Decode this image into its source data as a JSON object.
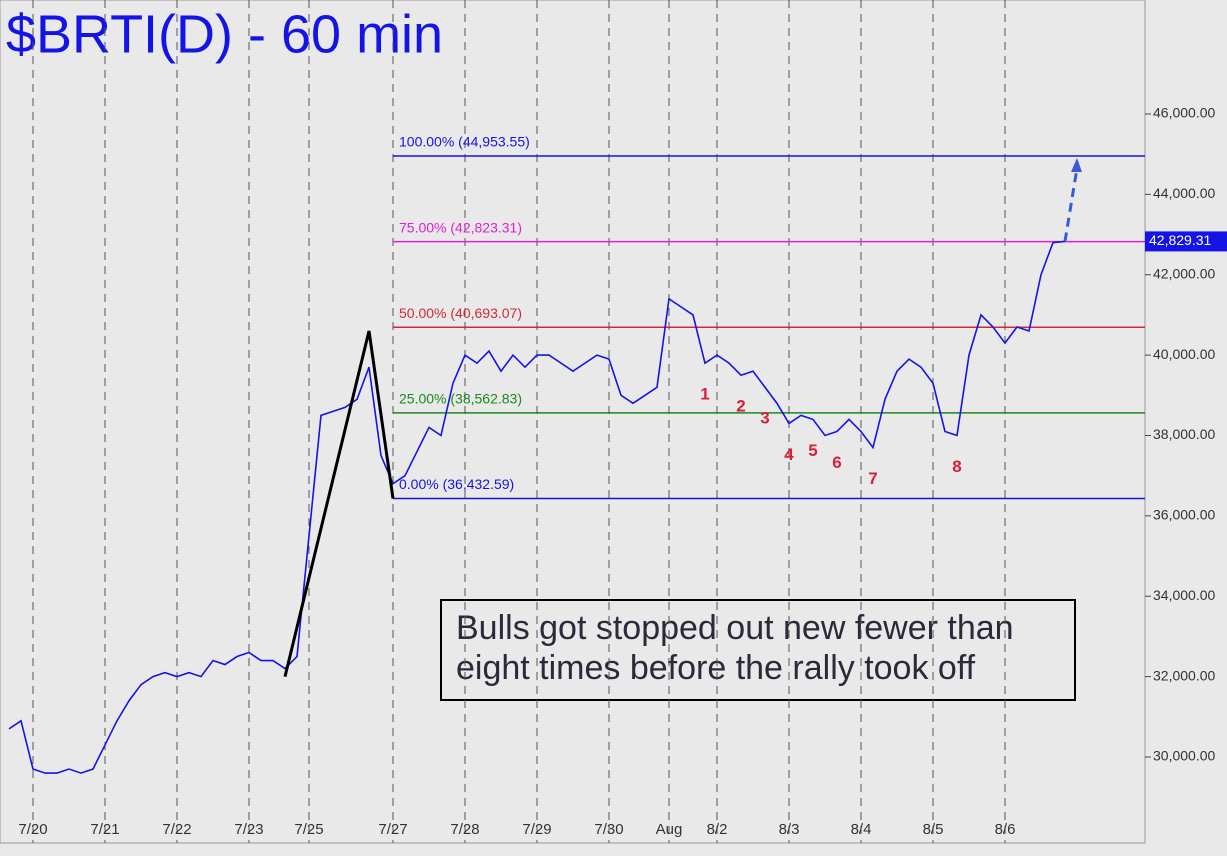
{
  "chart_data": {
    "type": "line",
    "title": "$BRTI(D) - 60 min",
    "categories": [
      null,
      null,
      "7/20",
      null,
      null,
      null,
      null,
      null,
      "7/21",
      null,
      null,
      null,
      null,
      null,
      "7/22",
      null,
      null,
      null,
      null,
      null,
      "7/23",
      null,
      null,
      null,
      null,
      "7/25",
      null,
      null,
      null,
      null,
      null,
      null,
      "7/27",
      null,
      null,
      null,
      null,
      null,
      "7/28",
      null,
      null,
      null,
      null,
      null,
      "7/29",
      null,
      null,
      null,
      null,
      null,
      "7/30",
      null,
      null,
      null,
      null,
      "Aug",
      null,
      null,
      null,
      "8/2",
      null,
      null,
      null,
      null,
      null,
      "8/3",
      null,
      null,
      null,
      null,
      null,
      "8/4",
      null,
      null,
      null,
      null,
      null,
      "8/5",
      null,
      null,
      null,
      null,
      null,
      "8/6",
      null,
      null,
      null,
      null,
      null
    ],
    "series": [
      {
        "name": "$BRTI",
        "color": "#1414e6",
        "values": [
          30700,
          30900,
          29700,
          29600,
          29600,
          29700,
          29600,
          29700,
          30300,
          30900,
          31400,
          31800,
          32000,
          32100,
          32000,
          32100,
          32000,
          32400,
          32300,
          32500,
          32600,
          32400,
          32400,
          32200,
          32500,
          35500,
          38500,
          38600,
          38700,
          38900,
          39700,
          37500,
          36800,
          37000,
          37600,
          38200,
          38000,
          39300,
          40000,
          39800,
          40100,
          39600,
          40000,
          39700,
          40000,
          40000,
          39800,
          39600,
          39800,
          40000,
          39900,
          39000,
          38800,
          39000,
          39200,
          41400,
          41200,
          41000,
          39800,
          40000,
          39800,
          39500,
          39600,
          39200,
          38800,
          38300,
          38500,
          38400,
          38000,
          38100,
          38400,
          38100,
          37700,
          38900,
          39600,
          39900,
          39700,
          39300,
          38100,
          38000,
          40000,
          41000,
          40700,
          40300,
          40700,
          40600,
          42000,
          42800,
          42829.31
        ]
      },
      {
        "name": "swing",
        "color": "#000000",
        "connect_gaps": true,
        "values": [
          null,
          null,
          null,
          null,
          null,
          null,
          null,
          null,
          null,
          null,
          null,
          null,
          null,
          null,
          null,
          null,
          null,
          null,
          null,
          null,
          null,
          null,
          null,
          32000,
          null,
          null,
          null,
          null,
          null,
          null,
          40600,
          null,
          36432.59,
          null,
          null,
          null,
          null,
          null,
          null,
          null,
          null,
          null,
          null,
          null,
          null,
          null,
          null,
          null,
          null,
          null,
          null,
          null,
          null,
          null,
          null,
          null,
          null,
          null,
          null,
          null,
          null,
          null,
          null,
          null,
          null,
          null,
          null,
          null,
          null,
          null,
          null,
          null,
          null,
          null,
          null,
          null,
          null,
          null,
          null,
          null,
          null,
          null,
          null,
          null,
          null,
          null,
          null,
          null,
          null
        ]
      }
    ],
    "wave_labels": [
      null,
      null,
      null,
      null,
      null,
      null,
      null,
      null,
      null,
      null,
      null,
      null,
      null,
      null,
      null,
      null,
      null,
      null,
      null,
      null,
      null,
      null,
      null,
      null,
      null,
      null,
      null,
      null,
      null,
      null,
      null,
      null,
      null,
      null,
      null,
      null,
      null,
      null,
      null,
      null,
      null,
      null,
      null,
      null,
      null,
      null,
      null,
      null,
      null,
      null,
      null,
      null,
      null,
      null,
      null,
      null,
      null,
      null,
      "1",
      null,
      null,
      "2",
      null,
      "3",
      null,
      "4",
      null,
      "5",
      null,
      "6",
      null,
      null,
      "7",
      null,
      null,
      null,
      null,
      null,
      null,
      "8",
      null,
      null,
      null,
      null,
      null,
      null,
      null,
      null,
      null
    ],
    "levels": [
      {
        "value": 44953.55,
        "label": "100.00% (44,953.55)",
        "color": "#1414e6"
      },
      {
        "value": 42823.31,
        "label": "75.00% (42,823.31)",
        "color": "#e020d0"
      },
      {
        "value": 40693.07,
        "label": "50.00% (40,693.07)",
        "color": "#d02a3a"
      },
      {
        "value": 38562.83,
        "label": "25.00% (38,562.83)",
        "color": "#1a8a1a"
      },
      {
        "value": 36432.59,
        "label": "0.00% (36,432.59)",
        "color": "#1414e6"
      }
    ],
    "last_price": {
      "value": 42829.31,
      "label": "42,829.31"
    },
    "annotation": [
      "Bulls got stopped out new fewer than",
      "eight times before the rally took off"
    ],
    "ylim": [
      27860,
      48836
    ],
    "yticks": [
      {
        "value": 30000,
        "label": "30,000.00"
      },
      {
        "value": 32000,
        "label": "32,000.00"
      },
      {
        "value": 34000,
        "label": "34,000.00"
      },
      {
        "value": 36000,
        "label": "36,000.00"
      },
      {
        "value": 38000,
        "label": "38,000.00"
      },
      {
        "value": 40000,
        "label": "40,000.00"
      },
      {
        "value": 42000,
        "label": "42,000.00"
      },
      {
        "value": 44000,
        "label": "44,000.00"
      },
      {
        "value": 46000,
        "label": "46,000.00"
      }
    ]
  }
}
